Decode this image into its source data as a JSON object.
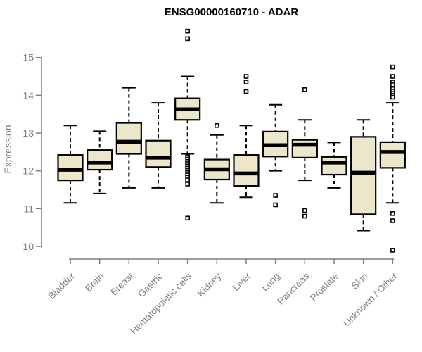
{
  "chart_data": {
    "type": "boxplot",
    "title": "ENSG00000160710 - ADAR",
    "ylabel": "Expression",
    "xlabel": "",
    "ylim": [
      10,
      15
    ],
    "yticks": [
      10,
      11,
      12,
      13,
      14,
      15
    ],
    "grid": false,
    "legend": false,
    "categories": [
      "Bladder",
      "Brain",
      "Breast",
      "Gastric",
      "Hematopoietic cells",
      "Kidney",
      "Liver",
      "Lung",
      "Pancreas",
      "Prostate",
      "Skin",
      "Unknown / Other"
    ],
    "boxes": [
      {
        "category": "Bladder",
        "whisker_low": 11.15,
        "q1": 11.75,
        "median": 12.03,
        "q3": 12.42,
        "whisker_high": 13.2,
        "outliers": []
      },
      {
        "category": "Brain",
        "whisker_low": 11.4,
        "q1": 12.03,
        "median": 12.22,
        "q3": 12.55,
        "whisker_high": 13.05,
        "outliers": []
      },
      {
        "category": "Breast",
        "whisker_low": 11.55,
        "q1": 12.45,
        "median": 12.77,
        "q3": 13.27,
        "whisker_high": 14.2,
        "outliers": []
      },
      {
        "category": "Gastric",
        "whisker_low": 11.55,
        "q1": 12.1,
        "median": 12.35,
        "q3": 12.8,
        "whisker_high": 13.8,
        "outliers": []
      },
      {
        "category": "Hematopoietic cells",
        "whisker_low": 12.45,
        "q1": 13.35,
        "median": 13.63,
        "q3": 13.92,
        "whisker_high": 14.5,
        "outliers": [
          15.7,
          15.5,
          12.37,
          12.31,
          12.25,
          12.19,
          12.13,
          12.07,
          12.01,
          11.95,
          11.89,
          11.83,
          11.76,
          11.65,
          10.75
        ]
      },
      {
        "category": "Kidney",
        "whisker_low": 11.15,
        "q1": 11.77,
        "median": 12.04,
        "q3": 12.3,
        "whisker_high": 12.95,
        "outliers": [
          13.2
        ]
      },
      {
        "category": "Liver",
        "whisker_low": 11.3,
        "q1": 11.6,
        "median": 11.93,
        "q3": 12.42,
        "whisker_high": 13.2,
        "outliers": [
          14.5,
          14.35,
          14.1
        ]
      },
      {
        "category": "Lung",
        "whisker_low": 12.0,
        "q1": 12.38,
        "median": 12.68,
        "q3": 13.04,
        "whisker_high": 13.75,
        "outliers": [
          11.35,
          11.1
        ]
      },
      {
        "category": "Pancreas",
        "whisker_low": 11.75,
        "q1": 12.35,
        "median": 12.69,
        "q3": 12.82,
        "whisker_high": 13.35,
        "outliers": [
          14.15,
          10.95,
          10.8
        ]
      },
      {
        "category": "Prostate",
        "whisker_low": 11.55,
        "q1": 11.9,
        "median": 12.22,
        "q3": 12.37,
        "whisker_high": 12.75,
        "outliers": []
      },
      {
        "category": "Skin",
        "whisker_low": 10.42,
        "q1": 10.85,
        "median": 11.95,
        "q3": 12.9,
        "whisker_high": 13.35,
        "outliers": []
      },
      {
        "category": "Unknown / Other",
        "whisker_low": 11.15,
        "q1": 12.08,
        "median": 12.5,
        "q3": 12.76,
        "whisker_high": 13.8,
        "outliers": [
          14.75,
          14.5,
          14.35,
          14.28,
          14.17,
          14.11,
          14.05,
          14.0,
          13.95,
          10.87,
          10.68,
          9.9
        ]
      }
    ],
    "style": {
      "box_fill": "#ece7cb",
      "box_stroke": "#000000",
      "median_color": "#000000",
      "whisker_color": "#000000",
      "outlier_color": "#000000",
      "axis_color": "#7e7e7e",
      "label_color": "#7e7e7e",
      "title_color": "#000000",
      "background": "#ffffff"
    }
  }
}
